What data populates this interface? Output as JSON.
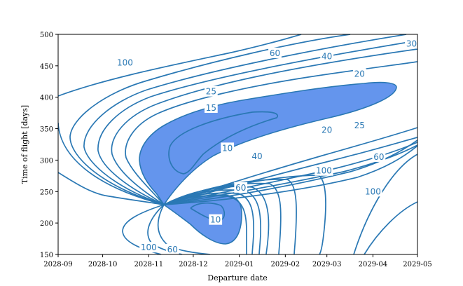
{
  "chart_data": {
    "type": "contour",
    "title": "",
    "xlabel": "Departure date",
    "ylabel": "Time of flight [days]",
    "x_ticks": [
      "2028-09",
      "2028-10",
      "2028-11",
      "2028-12",
      "2029-01",
      "2029-02",
      "2029-03",
      "2029-04",
      "2029-05"
    ],
    "y_ticks": [
      150,
      200,
      250,
      300,
      350,
      400,
      450,
      500
    ],
    "xlim": [
      "2028-09",
      "2029-05"
    ],
    "ylim": [
      150,
      500
    ],
    "contour_levels": [
      10,
      15,
      20,
      25,
      30,
      40,
      60,
      100
    ],
    "filled_region": {
      "below_level": 15,
      "color": "#6495ED"
    },
    "line_color": "#2a78b4",
    "grid": false,
    "contour_labels": [
      {
        "text": "100",
        "x": "2028-10-16",
        "y": 455
      },
      {
        "text": "60",
        "x": "2029-01-25",
        "y": 470
      },
      {
        "text": "40",
        "x": "2029-03-01",
        "y": 465
      },
      {
        "text": "30",
        "x": "2029-04-27",
        "y": 485
      },
      {
        "text": "25",
        "x": "2028-12-13",
        "y": 409
      },
      {
        "text": "20",
        "x": "2029-03-23",
        "y": 437
      },
      {
        "text": "15",
        "x": "2028-12-13",
        "y": 383
      },
      {
        "text": "10",
        "x": "2028-12-24",
        "y": 319
      },
      {
        "text": "20",
        "x": "2029-03-01",
        "y": 348
      },
      {
        "text": "25",
        "x": "2029-03-23",
        "y": 355
      },
      {
        "text": "40",
        "x": "2029-01-13",
        "y": 306
      },
      {
        "text": "100",
        "x": "2029-02-27",
        "y": 283
      },
      {
        "text": "60",
        "x": "2029-04-05",
        "y": 305
      },
      {
        "text": "60",
        "x": "2029-01-02",
        "y": 256
      },
      {
        "text": "10",
        "x": "2028-12-16",
        "y": 205
      },
      {
        "text": "100",
        "x": "2029-04-01",
        "y": 250
      },
      {
        "text": "100",
        "x": "2028-11-01",
        "y": 161
      },
      {
        "text": "60",
        "x": "2028-11-17",
        "y": 158
      }
    ]
  }
}
